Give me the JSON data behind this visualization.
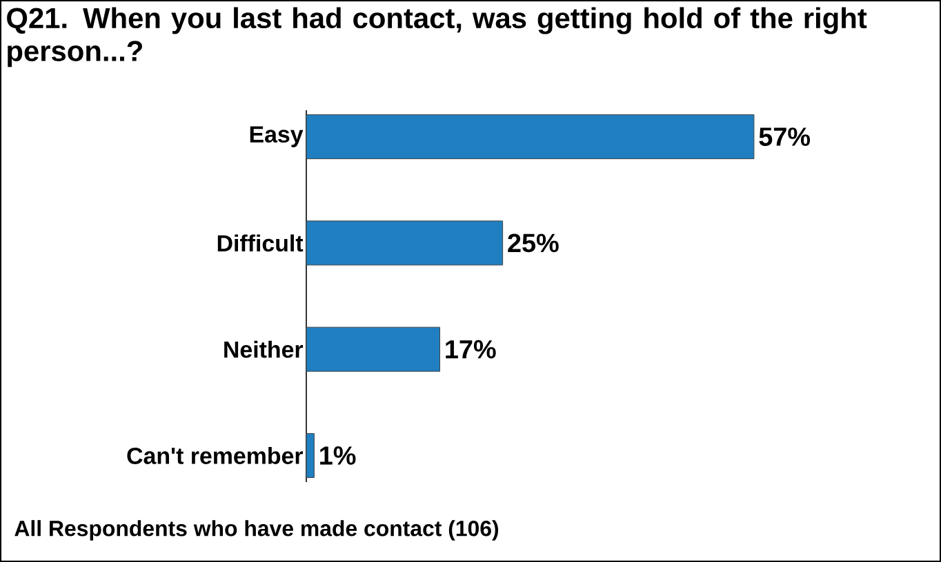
{
  "chart_data": {
    "type": "bar",
    "orientation": "horizontal",
    "title": "Q21. When you last had contact, was getting hold of the right person...?",
    "categories": [
      "Easy",
      "Difficult",
      "Neither",
      "Can't remember"
    ],
    "values": [
      57,
      25,
      17,
      1
    ],
    "value_labels": [
      "57%",
      "25%",
      "17%",
      "1%"
    ],
    "color": "#1f7fc1",
    "annotations": [
      "All Respondents who have made contact (106)"
    ]
  }
}
